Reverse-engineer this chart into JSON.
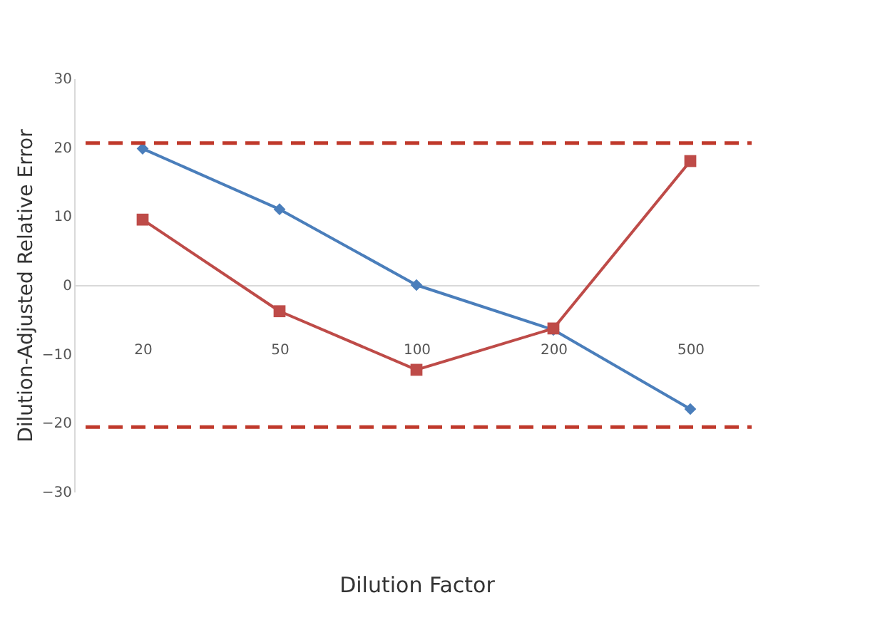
{
  "chart_data": {
    "type": "line",
    "xlabel": "Dilution Factor",
    "ylabel": "Dilution-Adjusted Relative Error",
    "categories": [
      "20",
      "50",
      "100",
      "200",
      "500"
    ],
    "series": [
      {
        "color": "#4a7ebb",
        "marker": "diamond",
        "values": [
          19.8,
          11,
          0,
          -6.5,
          -18
        ]
      },
      {
        "color": "#be4b48",
        "marker": "square",
        "values": [
          9.5,
          -3.8,
          -12.3,
          -6.3,
          18
        ]
      }
    ],
    "ylim": [
      -30,
      30
    ],
    "yticks": [
      -30,
      -20,
      -10,
      0,
      10,
      20,
      30
    ],
    "ref_lines": [
      {
        "axis": "y",
        "value": 20.6,
        "color": "#c0392b",
        "line_style": "dashed"
      },
      {
        "axis": "y",
        "value": -20.6,
        "color": "#c0392b",
        "line_style": "dashed"
      }
    ]
  }
}
